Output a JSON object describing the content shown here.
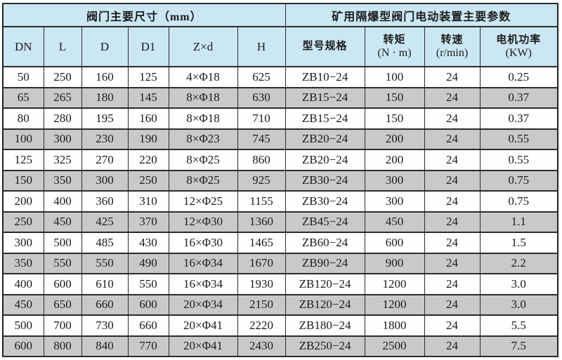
{
  "table": {
    "group_headers": [
      {
        "label": "阀门主要尺寸（mm）",
        "colspan": 6
      },
      {
        "label": "矿用隔爆型阀门电动装置主要参数",
        "colspan": 4
      }
    ],
    "columns": [
      {
        "label": "DN"
      },
      {
        "label": "L"
      },
      {
        "label": "D"
      },
      {
        "label": "D1"
      },
      {
        "label": "Z×d"
      },
      {
        "label": "H"
      },
      {
        "label": "型号规格",
        "cjk": true
      },
      {
        "label": "转矩",
        "sub": "(N · m)",
        "cjk": true
      },
      {
        "label": "转速",
        "sub": "(r/min)",
        "cjk": true
      },
      {
        "label": "电机功率",
        "sub": "(KW)",
        "cjk": true
      }
    ],
    "rows": [
      [
        "50",
        "250",
        "160",
        "125",
        "4×Φ18",
        "625",
        "ZB10−24",
        "100",
        "24",
        "0.25"
      ],
      [
        "65",
        "265",
        "180",
        "145",
        "8×Φ18",
        "630",
        "ZB15−24",
        "150",
        "24",
        "0.37"
      ],
      [
        "80",
        "280",
        "195",
        "160",
        "8×Φ18",
        "710",
        "ZB15−24",
        "150",
        "24",
        "0.37"
      ],
      [
        "100",
        "300",
        "230",
        "190",
        "8×Φ23",
        "745",
        "ZB20−24",
        "200",
        "24",
        "0.55"
      ],
      [
        "125",
        "325",
        "270",
        "220",
        "8×Φ25",
        "860",
        "ZB20−24",
        "200",
        "24",
        "0.55"
      ],
      [
        "150",
        "350",
        "300",
        "250",
        "8×Φ25",
        "925",
        "ZB30−24",
        "300",
        "24",
        "0.75"
      ],
      [
        "200",
        "400",
        "360",
        "310",
        "12×Φ25",
        "1155",
        "ZB30−24",
        "300",
        "24",
        "0.75"
      ],
      [
        "250",
        "450",
        "425",
        "370",
        "12×Φ30",
        "1360",
        "ZB45−24",
        "450",
        "24",
        "1.1"
      ],
      [
        "300",
        "500",
        "485",
        "430",
        "16×Φ30",
        "1465",
        "ZB60−24",
        "600",
        "24",
        "1.5"
      ],
      [
        "350",
        "550",
        "550",
        "490",
        "16×Φ34",
        "1670",
        "ZB90−24",
        "900",
        "24",
        "2.2"
      ],
      [
        "400",
        "600",
        "610",
        "550",
        "16×Φ34",
        "1930",
        "ZB120−24",
        "1200",
        "24",
        "3.0"
      ],
      [
        "450",
        "650",
        "660",
        "600",
        "20×Φ34",
        "2150",
        "ZB120−24",
        "1200",
        "24",
        "3.0"
      ],
      [
        "500",
        "700",
        "730",
        "660",
        "20×Φ41",
        "2220",
        "ZB180−24",
        "1800",
        "24",
        "5.5"
      ],
      [
        "600",
        "800",
        "840",
        "770",
        "20×Φ41",
        "2430",
        "ZB250−24",
        "2500",
        "24",
        "7.5"
      ]
    ]
  },
  "colors": {
    "header_background": "#cbe7f4",
    "alt_row_background": "#c9c9c9",
    "row_background": "#fefefe",
    "border": "#2a2a2a",
    "text": "#1b1b1b"
  },
  "chart_data": {
    "type": "table",
    "title": "阀门主要尺寸（mm） / 矿用隔爆型阀门电动装置主要参数",
    "columns": [
      "DN",
      "L",
      "D",
      "D1",
      "Z×d",
      "H",
      "型号规格",
      "转矩 (N·m)",
      "转速 (r/min)",
      "电机功率 (KW)"
    ],
    "rows": [
      [
        "50",
        "250",
        "160",
        "125",
        "4×Φ18",
        "625",
        "ZB10−24",
        "100",
        "24",
        "0.25"
      ],
      [
        "65",
        "265",
        "180",
        "145",
        "8×Φ18",
        "630",
        "ZB15−24",
        "150",
        "24",
        "0.37"
      ],
      [
        "80",
        "280",
        "195",
        "160",
        "8×Φ18",
        "710",
        "ZB15−24",
        "150",
        "24",
        "0.37"
      ],
      [
        "100",
        "300",
        "230",
        "190",
        "8×Φ23",
        "745",
        "ZB20−24",
        "200",
        "24",
        "0.55"
      ],
      [
        "125",
        "325",
        "270",
        "220",
        "8×Φ25",
        "860",
        "ZB20−24",
        "200",
        "24",
        "0.55"
      ],
      [
        "150",
        "350",
        "300",
        "250",
        "8×Φ25",
        "925",
        "ZB30−24",
        "300",
        "24",
        "0.75"
      ],
      [
        "200",
        "400",
        "360",
        "310",
        "12×Φ25",
        "1155",
        "ZB30−24",
        "300",
        "24",
        "0.75"
      ],
      [
        "250",
        "450",
        "425",
        "370",
        "12×Φ30",
        "1360",
        "ZB45−24",
        "450",
        "24",
        "1.1"
      ],
      [
        "300",
        "500",
        "485",
        "430",
        "16×Φ30",
        "1465",
        "ZB60−24",
        "600",
        "24",
        "1.5"
      ],
      [
        "350",
        "550",
        "550",
        "490",
        "16×Φ34",
        "1670",
        "ZB90−24",
        "900",
        "24",
        "2.2"
      ],
      [
        "400",
        "600",
        "610",
        "550",
        "16×Φ34",
        "1930",
        "ZB120−24",
        "1200",
        "24",
        "3.0"
      ],
      [
        "450",
        "650",
        "660",
        "600",
        "20×Φ34",
        "2150",
        "ZB120−24",
        "1200",
        "24",
        "3.0"
      ],
      [
        "500",
        "700",
        "730",
        "660",
        "20×Φ41",
        "2220",
        "ZB180−24",
        "1800",
        "24",
        "5.5"
      ],
      [
        "600",
        "800",
        "840",
        "770",
        "20×Φ41",
        "2430",
        "ZB250−24",
        "2500",
        "24",
        "7.5"
      ]
    ]
  }
}
